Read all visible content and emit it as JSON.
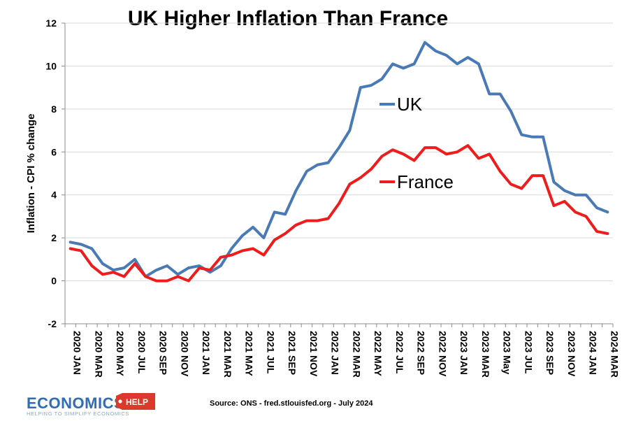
{
  "chart_data": {
    "type": "line",
    "title": "UK Higher Inflation Than France",
    "xlabel": "",
    "ylabel": "Inflation - CPI % change",
    "ylim": [
      -2,
      12
    ],
    "yticks": [
      -2,
      0,
      2,
      4,
      6,
      8,
      10,
      12
    ],
    "grid": true,
    "legend": "inline",
    "x_tick_labels": [
      "2020 JAN",
      "2020 MAR",
      "2020 MAY",
      "2020 JUL",
      "2020 SEP",
      "2020 NOV",
      "2021 JAN",
      "2021 MAR",
      "2021 MAY",
      "2021 JUL",
      "2021 SEP",
      "2021 NOV",
      "2022 JAN",
      "2022 MAR",
      "2022 MAY",
      "2022 JUL",
      "2022 SEP",
      "2022 NOV",
      "2023 JAN",
      "2023 MAR",
      "2023 May",
      "2023 JUL",
      "2023 SEP",
      "2023 NOV",
      "2024 JAN",
      "2024 MAR"
    ],
    "series": [
      {
        "name": "UK",
        "color": "#4a7ab5",
        "values": [
          1.8,
          1.7,
          1.5,
          0.8,
          0.5,
          0.6,
          1.0,
          0.2,
          0.5,
          0.7,
          0.3,
          0.6,
          0.7,
          0.4,
          0.7,
          1.5,
          2.1,
          2.5,
          2.0,
          3.2,
          3.1,
          4.2,
          5.1,
          5.4,
          5.5,
          6.2,
          7.0,
          9.0,
          9.1,
          9.4,
          10.1,
          9.9,
          10.1,
          11.1,
          10.7,
          10.5,
          10.1,
          10.4,
          10.1,
          8.7,
          8.7,
          7.9,
          6.8,
          6.7,
          6.7,
          4.6,
          4.2,
          4.0,
          4.0,
          3.4,
          3.2
        ]
      },
      {
        "name": "France",
        "color": "#ee1c1c",
        "values": [
          1.5,
          1.4,
          0.7,
          0.3,
          0.4,
          0.2,
          0.8,
          0.2,
          0.0,
          0.0,
          0.2,
          0.0,
          0.6,
          0.5,
          1.1,
          1.2,
          1.4,
          1.5,
          1.2,
          1.9,
          2.2,
          2.6,
          2.8,
          2.8,
          2.9,
          3.6,
          4.5,
          4.8,
          5.2,
          5.8,
          6.1,
          5.9,
          5.6,
          6.2,
          6.2,
          5.9,
          6.0,
          6.3,
          5.7,
          5.9,
          5.1,
          4.5,
          4.3,
          4.9,
          4.9,
          3.5,
          3.7,
          3.2,
          3.0,
          2.3,
          2.2
        ]
      }
    ]
  },
  "source": "Source: ONS  - fred.stlouisfed.org - July 2024",
  "logo": {
    "name": "ECONOMICS",
    "badge": "HELP",
    "tagline": "HELPING TO SIMPLIFY ECONOMICS"
  },
  "colors": {
    "grid": "#d9d9d9",
    "axis": "#8c8c8c",
    "logo_blue": "#2f6db5",
    "logo_red": "#d93a2b"
  }
}
